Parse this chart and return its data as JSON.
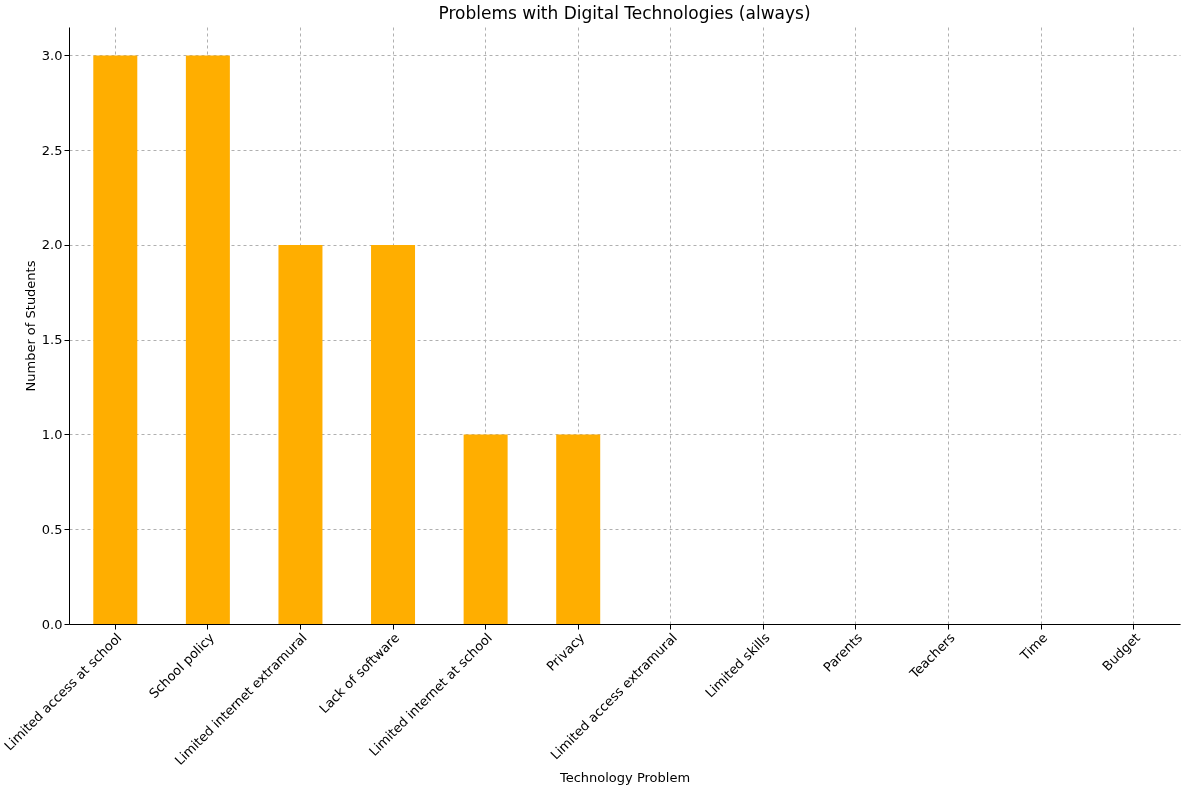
{
  "chart_data": {
    "type": "bar",
    "title": "Problems with Digital Technologies (always)",
    "xlabel": "Technology Problem",
    "ylabel": "Number of Students",
    "categories": [
      "Limited access at school",
      "School policy",
      "Limited internet extramural",
      "Lack of software",
      "Limited internet at school",
      "Privacy",
      "Limited access extramural",
      "Limited skills",
      "Parents",
      "Teachers",
      "Time",
      "Budget"
    ],
    "values": [
      3,
      3,
      2,
      2,
      1,
      1,
      0,
      0,
      0,
      0,
      0,
      0
    ],
    "color": "#ffae00",
    "ylim": [
      0,
      3.15
    ],
    "yticks": [
      {
        "value": 0,
        "label": "0.0"
      },
      {
        "value": 0.5,
        "label": "0.5"
      },
      {
        "value": 1,
        "label": "1.0"
      },
      {
        "value": 1.5,
        "label": "1.5"
      },
      {
        "value": 2,
        "label": "2.0"
      },
      {
        "value": 2.5,
        "label": "2.5"
      },
      {
        "value": 3,
        "label": "3.0"
      }
    ],
    "grid": true
  }
}
